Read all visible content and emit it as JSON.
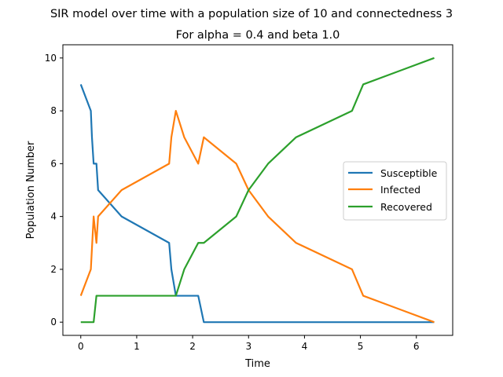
{
  "chart_data": {
    "type": "line",
    "title": "SIR model over time with a population size of 10 and connectedness 3",
    "subtitle": "For alpha = 0.4 and beta 1.0",
    "xlabel": "Time",
    "ylabel": "Population Number",
    "xlim": [
      -0.32,
      6.65
    ],
    "ylim": [
      -0.5,
      10.5
    ],
    "xticks": [
      0,
      1,
      2,
      3,
      4,
      5,
      6
    ],
    "yticks": [
      0,
      2,
      4,
      6,
      8,
      10
    ],
    "grid": false,
    "legend_position": "center-right",
    "series": [
      {
        "name": "Susceptible",
        "color": "#1f77b4",
        "points": [
          [
            0,
            9
          ],
          [
            0.18,
            8
          ],
          [
            0.2,
            7
          ],
          [
            0.23,
            6
          ],
          [
            0.28,
            6
          ],
          [
            0.31,
            5
          ],
          [
            0.73,
            4
          ],
          [
            1.58,
            3
          ],
          [
            1.62,
            2
          ],
          [
            1.7,
            1
          ],
          [
            2.1,
            1
          ],
          [
            2.2,
            0
          ],
          [
            6.32,
            0
          ]
        ]
      },
      {
        "name": "Infected",
        "color": "#ff7f0e",
        "points": [
          [
            0,
            1
          ],
          [
            0.18,
            2
          ],
          [
            0.23,
            4
          ],
          [
            0.28,
            3
          ],
          [
            0.31,
            4
          ],
          [
            0.73,
            5
          ],
          [
            1.58,
            6
          ],
          [
            1.62,
            7
          ],
          [
            1.7,
            8
          ],
          [
            1.85,
            7
          ],
          [
            2.1,
            6
          ],
          [
            2.2,
            7
          ],
          [
            2.78,
            6
          ],
          [
            3.0,
            5
          ],
          [
            3.35,
            4
          ],
          [
            3.85,
            3
          ],
          [
            4.85,
            2
          ],
          [
            5.05,
            1
          ],
          [
            6.32,
            0
          ]
        ]
      },
      {
        "name": "Recovered",
        "color": "#2ca02c",
        "points": [
          [
            0,
            0
          ],
          [
            0.23,
            0
          ],
          [
            0.28,
            1
          ],
          [
            1.7,
            1
          ],
          [
            1.85,
            2
          ],
          [
            2.1,
            3
          ],
          [
            2.2,
            3
          ],
          [
            2.78,
            4
          ],
          [
            3.0,
            5
          ],
          [
            3.35,
            6
          ],
          [
            3.85,
            7
          ],
          [
            4.85,
            8
          ],
          [
            5.05,
            9
          ],
          [
            6.32,
            10
          ]
        ]
      }
    ]
  }
}
